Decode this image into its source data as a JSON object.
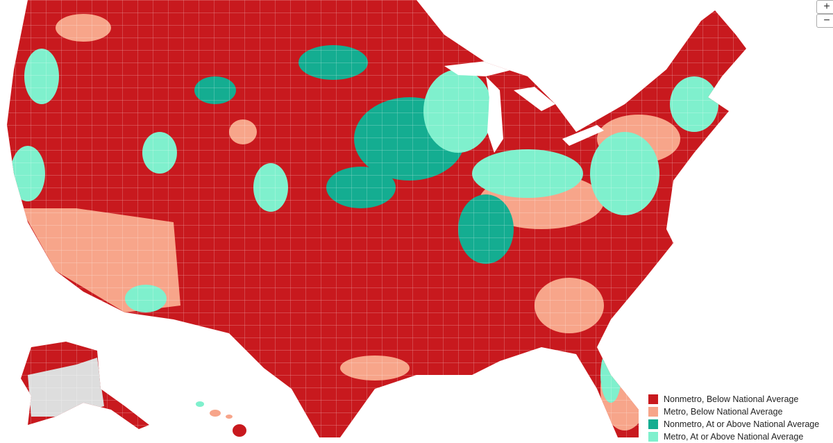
{
  "legend": {
    "items": [
      {
        "label": "Nonmetro, Below National Average",
        "color": "#c8191e"
      },
      {
        "label": "Metro, Below National Average",
        "color": "#f7a58a"
      },
      {
        "label": "Nonmetro, At or Above National Average",
        "color": "#14ad91"
      },
      {
        "label": "Metro, At or Above National Average",
        "color": "#7ff0cd"
      }
    ]
  },
  "controls": {
    "zoom_in": "+",
    "zoom_out": "−"
  }
}
